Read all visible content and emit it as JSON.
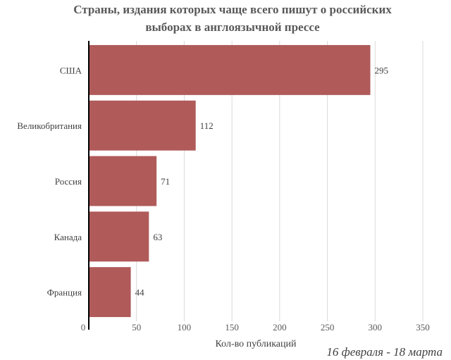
{
  "chart_data": {
    "type": "bar",
    "orientation": "horizontal",
    "title_lines": [
      "Страны, издания которых чаще всего пишут о российских",
      "выборах в англоязычной прессе"
    ],
    "categories": [
      "США",
      "Великобритания",
      "Россия",
      "Канада",
      "Франция"
    ],
    "values": [
      295,
      112,
      71,
      63,
      44
    ],
    "xlabel": "Кол-во публикаций",
    "ylabel": "",
    "xlim": [
      0,
      350
    ],
    "x_ticks": [
      "0",
      "50",
      "100",
      "150",
      "200",
      "250",
      "300",
      "350"
    ],
    "grid": "vertical",
    "legend": "none",
    "bar_color": "#b05a5a",
    "note": "16 февраля - 18 марта"
  }
}
